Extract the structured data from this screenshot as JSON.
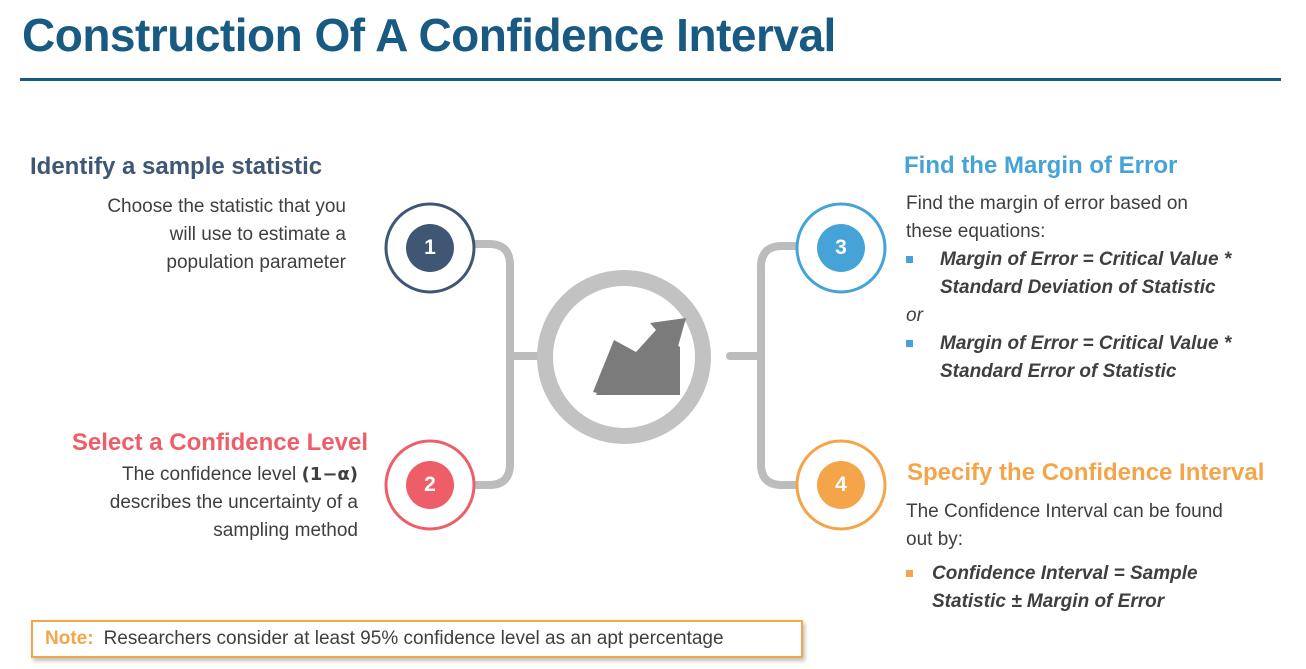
{
  "title": "Construction Of A Confidence Interval",
  "colors": {
    "title": "#185a82",
    "step1": "#3f5775",
    "step2": "#ee5e68",
    "step3": "#46a3d8",
    "step4": "#f4a54a",
    "connector": "#bcbcbc",
    "center_icon": "#7b7b7b"
  },
  "center": {
    "icon": "trend-chart-icon"
  },
  "steps": [
    {
      "number": "1",
      "title": "Identify a sample statistic",
      "lines": [
        "Choose the statistic that you",
        "will use to estimate a",
        "population parameter"
      ]
    },
    {
      "number": "2",
      "title": "Select a Confidence Level",
      "line1_prefix": "The confidence level ",
      "line1_formula": "(1−α)",
      "lines": [
        "describes the uncertainty of a",
        "sampling method"
      ]
    },
    {
      "number": "3",
      "title": "Find the Margin of Error",
      "intro": [
        "Find the margin of error based on",
        "these equations:"
      ],
      "bullets": [
        [
          "Margin of Error = Critical Value *",
          "Standard Deviation of Statistic"
        ],
        [
          "Margin of Error = Critical Value *",
          "Standard Error of Statistic"
        ]
      ],
      "separator": "or"
    },
    {
      "number": "4",
      "title": "Specify the Confidence Interval",
      "intro": [
        "The Confidence Interval can be found",
        "out by:"
      ],
      "bullets": [
        [
          "Confidence Interval = Sample",
          "Statistic ± Margin of Error"
        ]
      ]
    }
  ],
  "note": {
    "label": "Note:",
    "text": "Researchers consider at least 95% confidence level as an apt percentage"
  }
}
